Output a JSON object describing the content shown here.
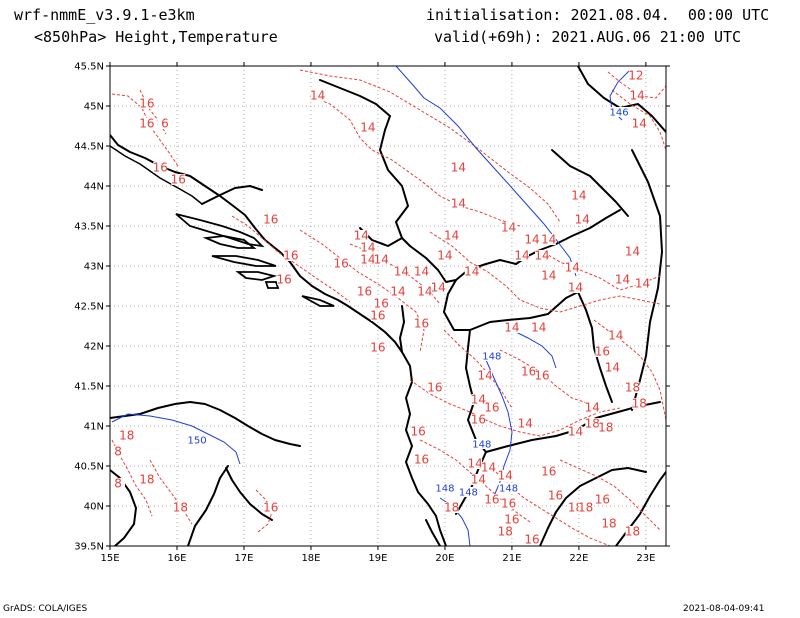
{
  "header": {
    "model": "wrf-nmmE_v3.9.1-e3km",
    "product": "<850hPa> Height,Temperature",
    "init": "initialisation: 2021.08.04.  00:00 UTC",
    "valid": "valid(+69h): 2021.AUG.06 21:00 UTC"
  },
  "footer": {
    "credit": "GrADS: COLA/IGES",
    "timestamp": "2021-08-04-09:41"
  },
  "axes": {
    "lat_labels": [
      "45.5N",
      "45N",
      "44.5N",
      "44N",
      "43.5N",
      "43N",
      "42.5N",
      "42N",
      "41.5N",
      "41N",
      "40.5N",
      "40N",
      "39.5N"
    ],
    "lon_labels": [
      "15E",
      "16E",
      "17E",
      "18E",
      "19E",
      "20E",
      "21E",
      "22E",
      "23E"
    ]
  },
  "colors": {
    "temperature": "#e8403a",
    "height": "#1f3fd8",
    "coast": "#000000",
    "grid": "#9a9a9a"
  },
  "map_data": {
    "lon_range": [
      15,
      23.3
    ],
    "lat_range": [
      39.5,
      45.5
    ],
    "temperature_labels": [
      {
        "t": "16",
        "lon": 15.55,
        "lat": 45.0
      },
      {
        "t": "16",
        "lon": 15.55,
        "lat": 44.75
      },
      {
        "t": "6",
        "lon": 15.82,
        "lat": 44.75
      },
      {
        "t": "16",
        "lon": 15.75,
        "lat": 44.2
      },
      {
        "t": "16",
        "lon": 16.02,
        "lat": 44.05
      },
      {
        "t": "14",
        "lon": 18.1,
        "lat": 45.1
      },
      {
        "t": "14",
        "lon": 18.85,
        "lat": 44.7
      },
      {
        "t": "12",
        "lon": 22.85,
        "lat": 45.35
      },
      {
        "t": "14",
        "lon": 22.87,
        "lat": 45.1
      },
      {
        "t": "14",
        "lon": 22.9,
        "lat": 44.75
      },
      {
        "t": "14",
        "lon": 20.2,
        "lat": 44.2
      },
      {
        "t": "14",
        "lon": 20.2,
        "lat": 43.75
      },
      {
        "t": "14",
        "lon": 22.0,
        "lat": 43.85
      },
      {
        "t": "14",
        "lon": 22.05,
        "lat": 43.55
      },
      {
        "t": "14",
        "lon": 20.1,
        "lat": 43.35
      },
      {
        "t": "14",
        "lon": 20.0,
        "lat": 43.1
      },
      {
        "t": "14",
        "lon": 20.95,
        "lat": 43.45
      },
      {
        "t": "14",
        "lon": 21.3,
        "lat": 43.3
      },
      {
        "t": "14",
        "lon": 21.55,
        "lat": 43.3
      },
      {
        "t": "14",
        "lon": 21.15,
        "lat": 43.1
      },
      {
        "t": "14",
        "lon": 21.45,
        "lat": 43.1
      },
      {
        "t": "14",
        "lon": 21.9,
        "lat": 42.95
      },
      {
        "t": "14",
        "lon": 22.8,
        "lat": 43.15
      },
      {
        "t": "14",
        "lon": 21.55,
        "lat": 42.85
      },
      {
        "t": "14",
        "lon": 21.95,
        "lat": 42.7
      },
      {
        "t": "14",
        "lon": 22.65,
        "lat": 42.8
      },
      {
        "t": "14",
        "lon": 22.95,
        "lat": 42.75
      },
      {
        "t": "16",
        "lon": 17.4,
        "lat": 43.55
      },
      {
        "t": "16",
        "lon": 17.7,
        "lat": 43.1
      },
      {
        "t": "16",
        "lon": 17.6,
        "lat": 42.8
      },
      {
        "t": "16",
        "lon": 18.45,
        "lat": 43.0
      },
      {
        "t": "14",
        "lon": 18.75,
        "lat": 43.35
      },
      {
        "t": "14",
        "lon": 18.85,
        "lat": 43.2
      },
      {
        "t": "14",
        "lon": 18.85,
        "lat": 43.05
      },
      {
        "t": "14",
        "lon": 19.05,
        "lat": 43.05
      },
      {
        "t": "14",
        "lon": 19.35,
        "lat": 42.9
      },
      {
        "t": "14",
        "lon": 19.65,
        "lat": 42.9
      },
      {
        "t": "14",
        "lon": 20.4,
        "lat": 42.9
      },
      {
        "t": "16",
        "lon": 18.8,
        "lat": 42.65
      },
      {
        "t": "16",
        "lon": 19.05,
        "lat": 42.5
      },
      {
        "t": "14",
        "lon": 19.3,
        "lat": 42.65
      },
      {
        "t": "14",
        "lon": 19.7,
        "lat": 42.65
      },
      {
        "t": "14",
        "lon": 19.9,
        "lat": 42.7
      },
      {
        "t": "16",
        "lon": 19.0,
        "lat": 42.35
      },
      {
        "t": "16",
        "lon": 19.65,
        "lat": 42.25
      },
      {
        "t": "16",
        "lon": 19.0,
        "lat": 41.95
      },
      {
        "t": "14",
        "lon": 21.0,
        "lat": 42.2
      },
      {
        "t": "14",
        "lon": 21.4,
        "lat": 42.2
      },
      {
        "t": "14",
        "lon": 22.55,
        "lat": 42.1
      },
      {
        "t": "16",
        "lon": 22.35,
        "lat": 41.9
      },
      {
        "t": "14",
        "lon": 22.5,
        "lat": 41.7
      },
      {
        "t": "16",
        "lon": 21.25,
        "lat": 41.65
      },
      {
        "t": "16",
        "lon": 21.45,
        "lat": 41.6
      },
      {
        "t": "14",
        "lon": 20.6,
        "lat": 41.6
      },
      {
        "t": "18",
        "lon": 22.8,
        "lat": 41.45
      },
      {
        "t": "18",
        "lon": 22.9,
        "lat": 41.25
      },
      {
        "t": "16",
        "lon": 19.85,
        "lat": 41.45
      },
      {
        "t": "14",
        "lon": 20.5,
        "lat": 41.3
      },
      {
        "t": "16",
        "lon": 20.7,
        "lat": 41.2
      },
      {
        "t": "16",
        "lon": 20.5,
        "lat": 41.05
      },
      {
        "t": "14",
        "lon": 22.2,
        "lat": 41.2
      },
      {
        "t": "14",
        "lon": 21.2,
        "lat": 41.0
      },
      {
        "t": "14",
        "lon": 21.95,
        "lat": 40.9
      },
      {
        "t": "18",
        "lon": 22.2,
        "lat": 41.0
      },
      {
        "t": "18",
        "lon": 22.4,
        "lat": 40.95
      },
      {
        "t": "16",
        "lon": 19.6,
        "lat": 40.9
      },
      {
        "t": "16",
        "lon": 19.65,
        "lat": 40.55
      },
      {
        "t": "14",
        "lon": 20.45,
        "lat": 40.5
      },
      {
        "t": "14",
        "lon": 20.65,
        "lat": 40.45
      },
      {
        "t": "14",
        "lon": 20.5,
        "lat": 40.3
      },
      {
        "t": "14",
        "lon": 20.9,
        "lat": 40.35
      },
      {
        "t": "16",
        "lon": 21.55,
        "lat": 40.4
      },
      {
        "t": "16",
        "lon": 21.65,
        "lat": 40.1
      },
      {
        "t": "16",
        "lon": 20.7,
        "lat": 40.05
      },
      {
        "t": "16",
        "lon": 20.95,
        "lat": 40.0
      },
      {
        "t": "18",
        "lon": 20.1,
        "lat": 39.95
      },
      {
        "t": "16",
        "lon": 21.0,
        "lat": 39.8
      },
      {
        "t": "18",
        "lon": 20.9,
        "lat": 39.65
      },
      {
        "t": "16",
        "lon": 21.3,
        "lat": 39.55
      },
      {
        "t": "18",
        "lon": 21.95,
        "lat": 39.95
      },
      {
        "t": "18",
        "lon": 22.1,
        "lat": 39.95
      },
      {
        "t": "16",
        "lon": 22.35,
        "lat": 40.05
      },
      {
        "t": "18",
        "lon": 22.45,
        "lat": 39.75
      },
      {
        "t": "18",
        "lon": 22.8,
        "lat": 39.65
      },
      {
        "t": "18",
        "lon": 15.25,
        "lat": 40.85
      },
      {
        "t": "8",
        "lon": 15.12,
        "lat": 40.65
      },
      {
        "t": "8",
        "lon": 15.12,
        "lat": 40.25
      },
      {
        "t": "18",
        "lon": 15.55,
        "lat": 40.3
      },
      {
        "t": "18",
        "lon": 16.05,
        "lat": 39.95
      },
      {
        "t": "16",
        "lon": 17.4,
        "lat": 39.95
      }
    ],
    "height_labels": [
      {
        "t": "146",
        "lon": 22.6,
        "lat": 44.9
      },
      {
        "t": "148",
        "lon": 20.7,
        "lat": 41.85
      },
      {
        "t": "148",
        "lon": 20.55,
        "lat": 40.75
      },
      {
        "t": "148",
        "lon": 20.0,
        "lat": 40.2
      },
      {
        "t": "148",
        "lon": 20.35,
        "lat": 40.15
      },
      {
        "t": "148",
        "lon": 20.95,
        "lat": 40.2
      },
      {
        "t": "150",
        "lon": 16.3,
        "lat": 40.8
      }
    ]
  }
}
